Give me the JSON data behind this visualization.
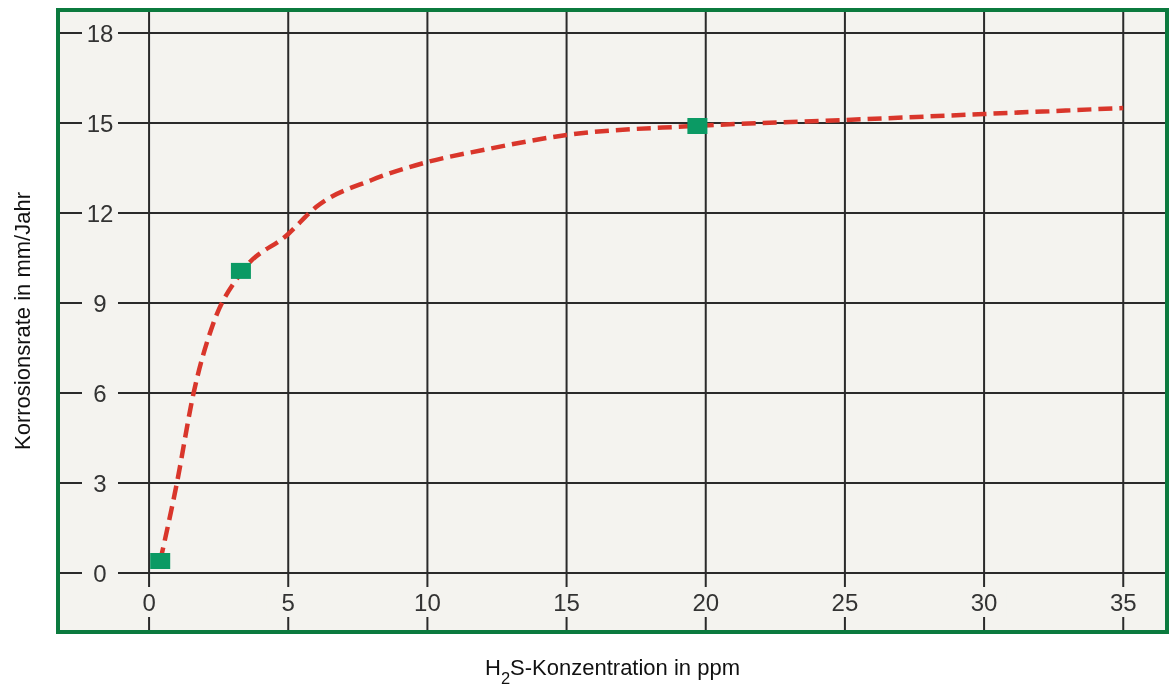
{
  "chart_data": {
    "type": "line",
    "xlabel": "H$_{2}$S-Konzentration in ppm",
    "ylabel": "Korrosionsrate in mm/Jahr",
    "xlim": [
      -3.2,
      36.5
    ],
    "ylim": [
      -1.9,
      18.7
    ],
    "xticks": [
      0,
      5,
      10,
      15,
      20,
      25,
      30,
      35
    ],
    "yticks": [
      0,
      3,
      6,
      9,
      12,
      15,
      18
    ],
    "grid": true,
    "series": [
      {
        "color": "#d9362b",
        "line_style": "dashed",
        "marker": "none",
        "x": [
          0.4,
          1.0,
          1.6,
          2.3,
          3.3,
          5,
          6,
          8,
          10,
          12,
          15,
          19.6,
          25,
          30,
          35
        ],
        "values": [
          0.4,
          3,
          6,
          8.3,
          10,
          11.3,
          12.2,
          13.1,
          13.7,
          14.1,
          14.6,
          14.9,
          15.1,
          15.3,
          15.5
        ]
      },
      {
        "type": "scatter",
        "color": "#0b9a64",
        "marker": "square",
        "x": [
          0.4,
          3.3,
          19.7
        ],
        "values": [
          0.4,
          10.07,
          14.9
        ]
      }
    ]
  }
}
